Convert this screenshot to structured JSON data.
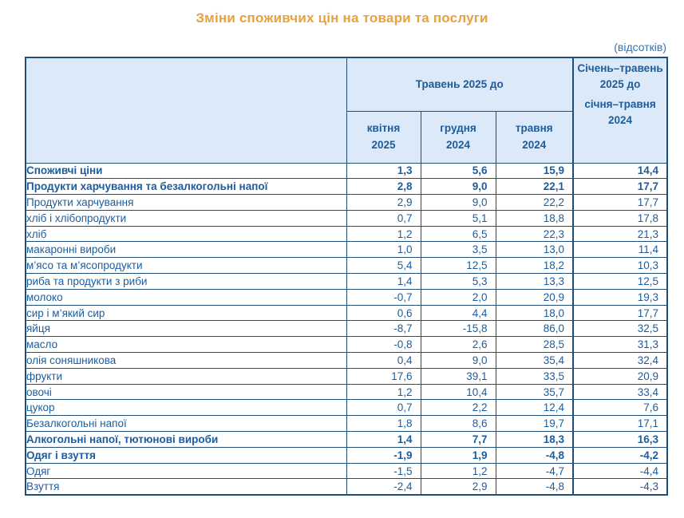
{
  "title": "Зміни споживчих цін на товари та послуги",
  "unit_note": "(відсотків)",
  "colors": {
    "title": "#e8a13c",
    "header_bg": "#dbe9f8",
    "border": "#1f4e79",
    "text": "#1d5c9c",
    "unit_note": "#2e75b6"
  },
  "table": {
    "header": {
      "period_group": "Травень 2025 до",
      "cumulative_group": [
        "Січень–травень",
        "2025 до"
      ],
      "subheaders": [
        [
          "квітня",
          "2025"
        ],
        [
          "грудня",
          "2024"
        ],
        [
          "травня",
          "2024"
        ]
      ],
      "cumulative_sub": [
        "січня–травня",
        "2024"
      ]
    },
    "rows": [
      {
        "label": "Споживчі ціни",
        "level": 0,
        "bold": true,
        "values": [
          "1,3",
          "5,6",
          "15,9",
          "14,4"
        ]
      },
      {
        "label": "Продукти харчування та безалкогольні напої",
        "level": 1,
        "bold": true,
        "values": [
          "2,8",
          "9,0",
          "22,1",
          "17,7"
        ]
      },
      {
        "label": "Продукти харчування",
        "level": 2,
        "bold": false,
        "values": [
          "2,9",
          "9,0",
          "22,2",
          "17,7"
        ]
      },
      {
        "label": "хліб і хлібопродукти",
        "level": 3,
        "bold": false,
        "values": [
          "0,7",
          "5,1",
          "18,8",
          "17,8"
        ]
      },
      {
        "label": "хліб",
        "level": 3,
        "bold": false,
        "values": [
          "1,2",
          "6,5",
          "22,3",
          "21,3"
        ]
      },
      {
        "label": "макаронні вироби",
        "level": 3,
        "bold": false,
        "values": [
          "1,0",
          "3,5",
          "13,0",
          "11,4"
        ]
      },
      {
        "label": "м’ясо та м’ясопродукти",
        "level": 3,
        "bold": false,
        "values": [
          "5,4",
          "12,5",
          "18,2",
          "10,3"
        ]
      },
      {
        "label": "риба та продукти з риби",
        "level": 3,
        "bold": false,
        "values": [
          "1,4",
          "5,3",
          "13,3",
          "12,5"
        ]
      },
      {
        "label": "молоко",
        "level": 3,
        "bold": false,
        "values": [
          "-0,7",
          "2,0",
          "20,9",
          "19,3"
        ]
      },
      {
        "label": "сир і м’який сир",
        "level": 3,
        "bold": false,
        "values": [
          "0,6",
          "4,4",
          "18,0",
          "17,7"
        ]
      },
      {
        "label": "яйця",
        "level": 3,
        "bold": false,
        "values": [
          "-8,7",
          "-15,8",
          "86,0",
          "32,5"
        ]
      },
      {
        "label": "масло",
        "level": 3,
        "bold": false,
        "values": [
          "-0,8",
          "2,6",
          "28,5",
          "31,3"
        ]
      },
      {
        "label": "олія соняшникова",
        "level": 3,
        "bold": false,
        "values": [
          "0,4",
          "9,0",
          "35,4",
          "32,4"
        ]
      },
      {
        "label": "фрукти",
        "level": 3,
        "bold": false,
        "values": [
          "17,6",
          "39,1",
          "33,5",
          "20,9"
        ]
      },
      {
        "label": "овочі",
        "level": 3,
        "bold": false,
        "values": [
          "1,2",
          "10,4",
          "35,7",
          "33,4"
        ]
      },
      {
        "label": "цукор",
        "level": 3,
        "bold": false,
        "values": [
          "0,7",
          "2,2",
          "12,4",
          "7,6"
        ]
      },
      {
        "label": "Безалкогольні напої",
        "level": 2,
        "bold": false,
        "values": [
          "1,8",
          "8,6",
          "19,7",
          "17,1"
        ]
      },
      {
        "label": "Алкогольні напої, тютюнові вироби",
        "level": 1,
        "bold": true,
        "values": [
          "1,4",
          "7,7",
          "18,3",
          "16,3"
        ]
      },
      {
        "label": "Одяг і взуття",
        "level": 1,
        "bold": true,
        "values": [
          "-1,9",
          "1,9",
          "-4,8",
          "-4,2"
        ]
      },
      {
        "label": "Одяг",
        "level": 2,
        "bold": false,
        "values": [
          "-1,5",
          "1,2",
          "-4,7",
          "-4,4"
        ]
      },
      {
        "label": "Взуття",
        "level": 2,
        "bold": false,
        "values": [
          "-2,4",
          "2,9",
          "-4,8",
          "-4,3"
        ]
      }
    ]
  }
}
